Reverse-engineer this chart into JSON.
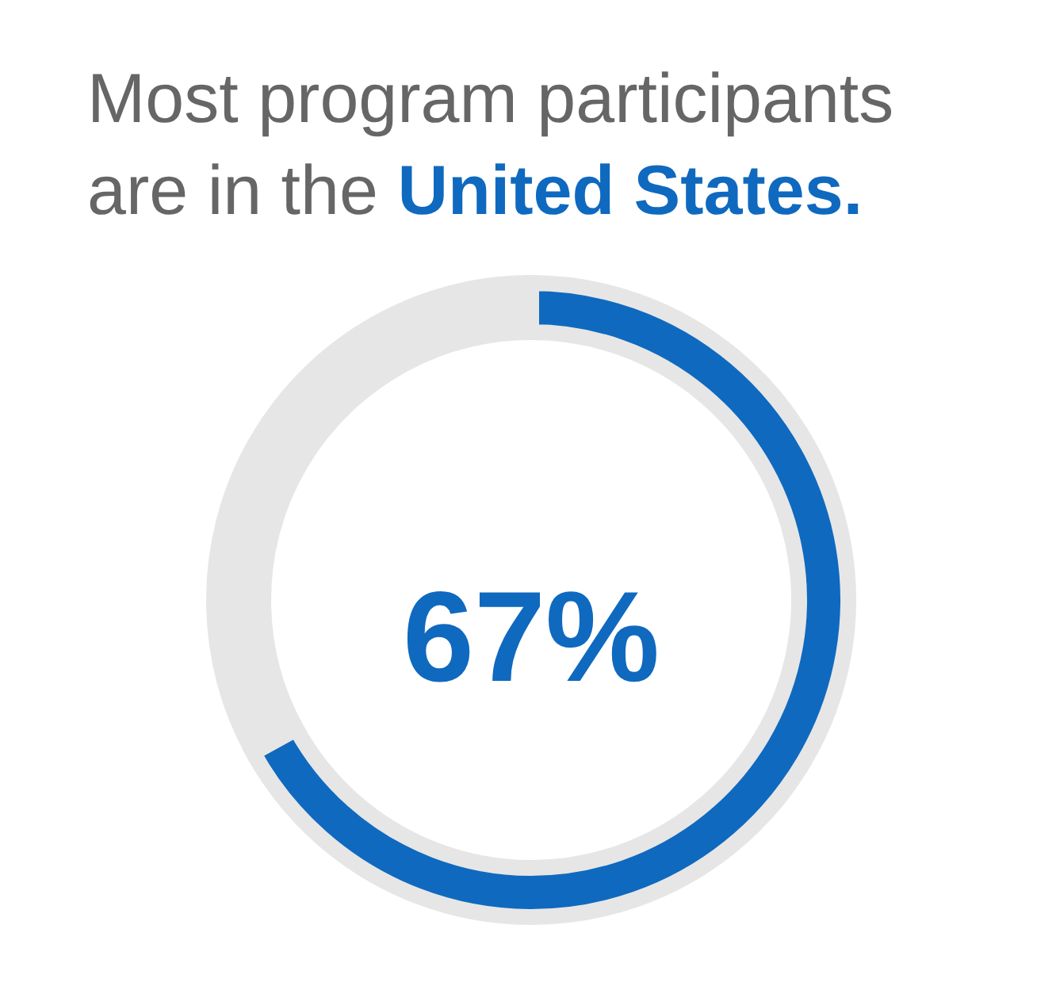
{
  "chart_data": {
    "type": "donut",
    "title": "Most program participants are in the United States.",
    "categories": [
      null,
      null
    ],
    "values": [
      67,
      33
    ],
    "colors": [
      "#0f69bf",
      "#e6e6e6"
    ],
    "value_labels": [
      "67%",
      null
    ]
  }
}
